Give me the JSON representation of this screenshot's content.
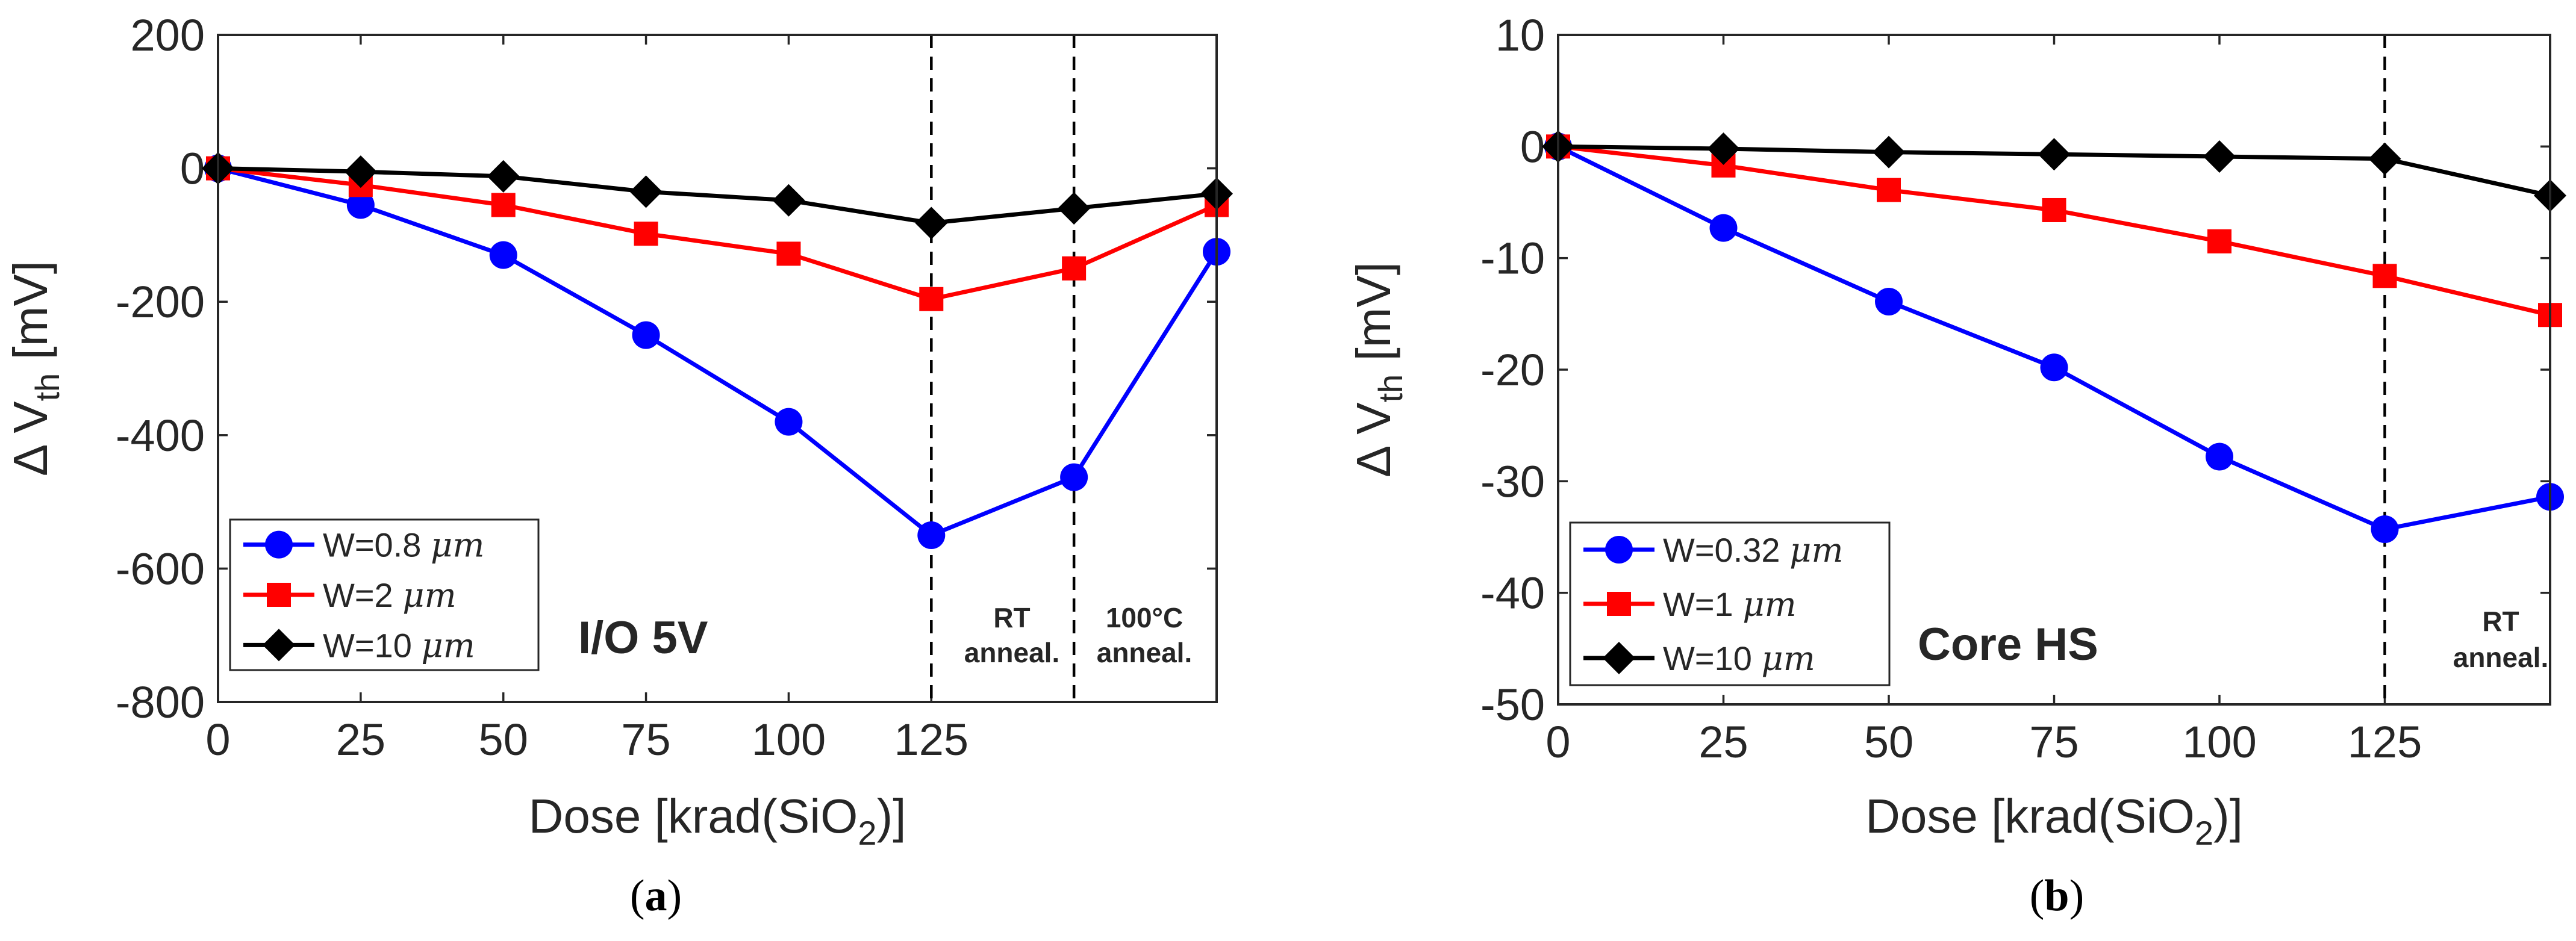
{
  "chart_data": [
    {
      "type": "line",
      "panel_label": "a",
      "xlabel": "Dose [krad(SiO",
      "xlabel_sub": "2",
      "xlabel_end": ")]",
      "ylabel_prefix": "Δ V",
      "ylabel_sub": "th",
      "ylabel_suffix": " [mV]",
      "ylim": [
        -800,
        200
      ],
      "yticks": [
        200,
        0,
        -200,
        -400,
        -600,
        -800
      ],
      "xlim": [
        0,
        175
      ],
      "xticks": [
        0,
        25,
        50,
        75,
        100,
        125
      ],
      "x": [
        0,
        25,
        50,
        75,
        100,
        125,
        150,
        175
      ],
      "series": [
        {
          "name": "W=0.8 ",
          "unit": "μm",
          "color": "#0000ff",
          "marker": "circle",
          "values": [
            0,
            -55,
            -130,
            -250,
            -380,
            -550,
            -463,
            -125
          ]
        },
        {
          "name": "W=2 ",
          "unit": "μm",
          "color": "#ff0000",
          "marker": "square",
          "values": [
            0,
            -25,
            -55,
            -98,
            -128,
            -196,
            -150,
            -55
          ]
        },
        {
          "name": "W=10 ",
          "unit": "μm",
          "color": "#000000",
          "marker": "diamond",
          "values": [
            0,
            -5,
            -12,
            -35,
            -48,
            -82,
            -60,
            -38
          ]
        }
      ],
      "vlines": [
        125,
        150
      ],
      "annotations": {
        "device": "I/O 5V",
        "rt_line1": "RT",
        "rt_line2": "anneal.",
        "ht_line1": "100°C",
        "ht_line2": "anneal."
      },
      "legend_position": "bottom-left"
    },
    {
      "type": "line",
      "panel_label": "b",
      "xlabel": "Dose [krad(SiO",
      "xlabel_sub": "2",
      "xlabel_end": ")]",
      "ylabel_prefix": "Δ V",
      "ylabel_sub": "th",
      "ylabel_suffix": " [mV]",
      "ylim": [
        -50,
        10
      ],
      "yticks": [
        10,
        0,
        -10,
        -20,
        -30,
        -40,
        -50
      ],
      "xlim": [
        0,
        150
      ],
      "xticks": [
        0,
        25,
        50,
        75,
        100,
        125
      ],
      "x": [
        0,
        25,
        50,
        75,
        100,
        125,
        150
      ],
      "series": [
        {
          "name": "W=0.32 ",
          "unit": "μm",
          "color": "#0000ff",
          "marker": "circle",
          "values": [
            0,
            -7.3,
            -13.9,
            -19.8,
            -27.8,
            -34.3,
            -31.4
          ]
        },
        {
          "name": "W=1 ",
          "unit": "μm",
          "color": "#ff0000",
          "marker": "square",
          "values": [
            0,
            -1.7,
            -3.9,
            -5.7,
            -8.5,
            -11.6,
            -15.1
          ]
        },
        {
          "name": "W=10 ",
          "unit": "μm",
          "color": "#000000",
          "marker": "diamond",
          "values": [
            0,
            -0.2,
            -0.5,
            -0.7,
            -0.9,
            -1.1,
            -4.4
          ]
        }
      ],
      "vlines": [
        125
      ],
      "annotations": {
        "device": "Core HS",
        "rt_line1": "RT",
        "rt_line2": "anneal."
      },
      "legend_position": "bottom-left"
    }
  ]
}
